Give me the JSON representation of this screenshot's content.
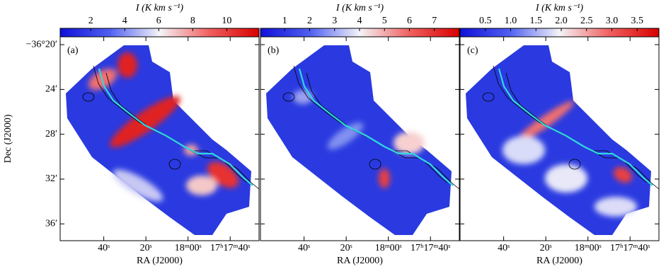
{
  "chart_data": [
    {
      "type": "map",
      "panel_label": "(a)",
      "colorbar": {
        "label": "I (K km s⁻¹)",
        "lim": [
          0.2,
          11.9
        ],
        "ticks": [
          2,
          4,
          6,
          8,
          10
        ]
      },
      "xlabel": "RA (J2000)",
      "xlim": [
        60.7,
        -33.7
      ],
      "xticks": [
        {
          "value": 40,
          "label": "40ˢ"
        },
        {
          "value": 20,
          "label": "20ˢ"
        },
        {
          "value": 0,
          "label": "18ᵐ00ˢ"
        },
        {
          "value": -20,
          "label": "17ʰ17ᵐ40ˢ"
        }
      ],
      "ylabel": "Dec (J2000)",
      "ylim": [
        37.5,
        19.3
      ],
      "yticks": [
        {
          "value": 20,
          "label": "−36°20′"
        },
        {
          "value": 24,
          "label": "24′"
        },
        {
          "value": 28,
          "label": "28′"
        },
        {
          "value": 32,
          "label": "32′"
        },
        {
          "value": 36,
          "label": "36′"
        }
      ]
    },
    {
      "type": "map",
      "panel_label": "(b)",
      "colorbar": {
        "label": "I (K km s⁻¹)",
        "lim": [
          0.03,
          8.0
        ],
        "ticks": [
          1,
          2,
          3,
          4,
          5,
          6,
          7
        ]
      },
      "xlabel": "RA (J2000)",
      "xlim": [
        60.7,
        -33.7
      ],
      "xticks": [
        {
          "value": 40,
          "label": "40ˢ"
        },
        {
          "value": 20,
          "label": "20ˢ"
        },
        {
          "value": 0,
          "label": "18ᵐ00ˢ"
        },
        {
          "value": -20,
          "label": "17ʰ17ᵐ40ˢ"
        }
      ]
    },
    {
      "type": "map",
      "panel_label": "(c)",
      "colorbar": {
        "label": "I (K km s⁻¹)",
        "lim": [
          0.0,
          3.93
        ],
        "ticks": [
          0.5,
          {
            "value": 1,
            "label": "1.0"
          },
          1.5,
          {
            "value": 2,
            "label": "2.0"
          },
          2.5,
          {
            "value": 3,
            "label": "3.0"
          },
          3.5
        ]
      },
      "xlabel": "RA (J2000)",
      "xlim": [
        60.7,
        -33.7
      ],
      "xticks": [
        {
          "value": 40,
          "label": "40ˢ"
        },
        {
          "value": 20,
          "label": "20ˢ"
        },
        {
          "value": 0,
          "label": "18ᵐ00ˢ"
        },
        {
          "value": -20,
          "label": "17ʰ17ᵐ40ˢ"
        }
      ]
    }
  ]
}
